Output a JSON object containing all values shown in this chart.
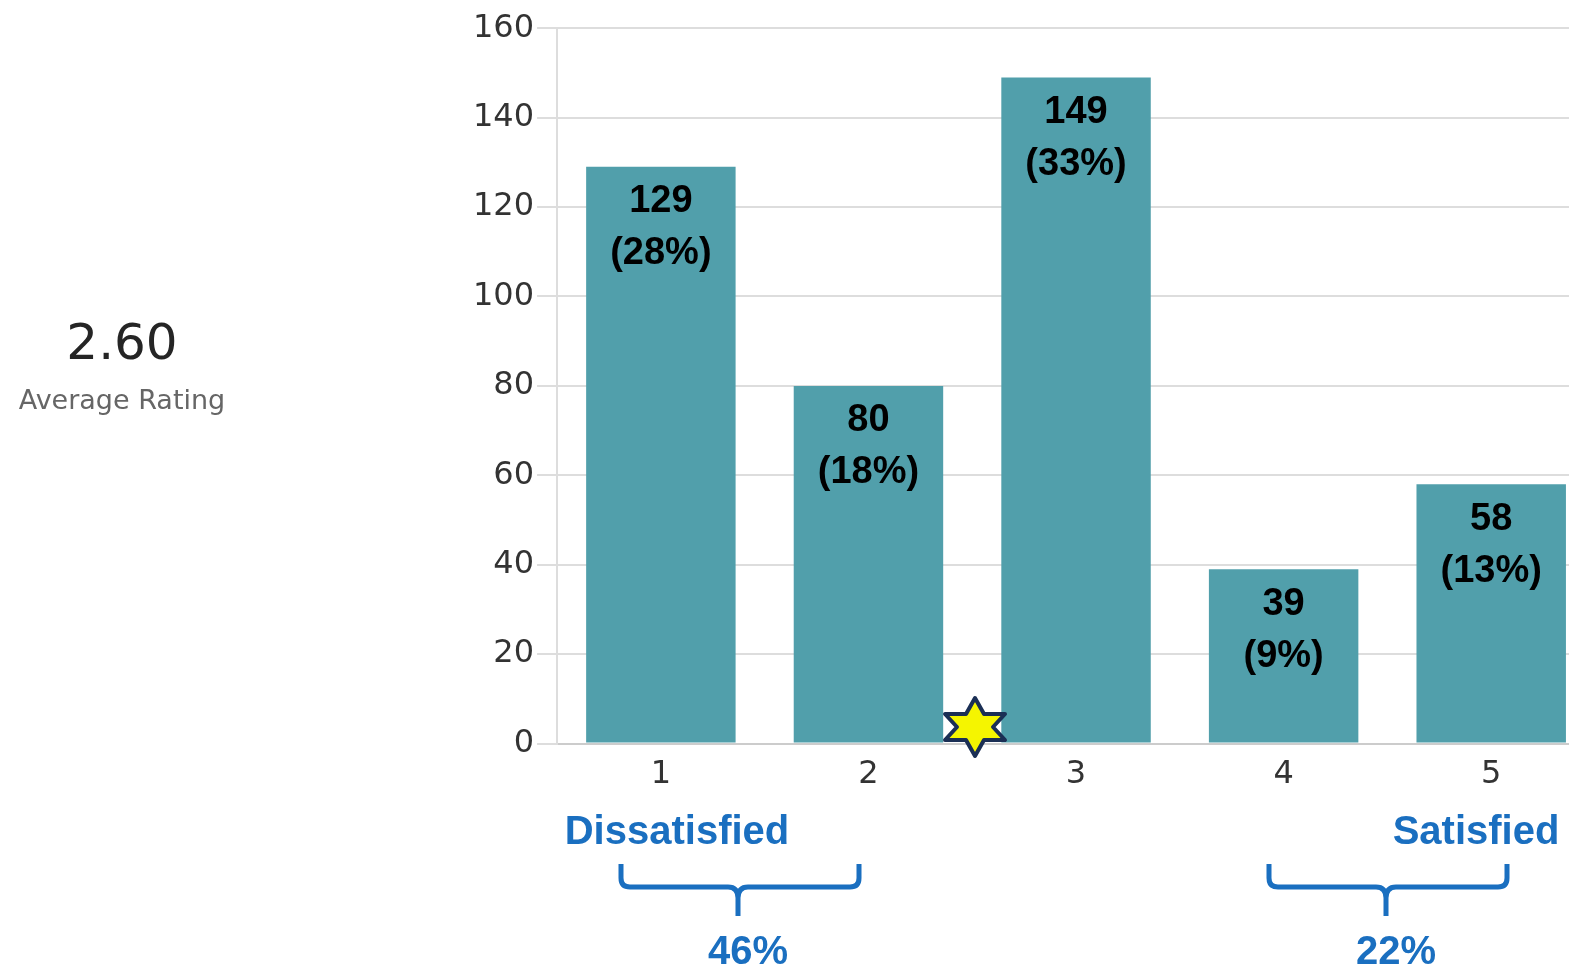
{
  "chart_data": {
    "type": "bar",
    "categories": [
      "1",
      "2",
      "3",
      "4",
      "5"
    ],
    "values": [
      129,
      80,
      149,
      39,
      58
    ],
    "color": "#519fab",
    "value_labels": [
      "129\n(28%)",
      "80\n(18%)",
      "149\n(33%)",
      "39\n(9%)",
      "58\n(13%)"
    ],
    "ylim": [
      0,
      160
    ],
    "yticks": [
      0,
      20,
      40,
      60,
      80,
      100,
      120,
      140,
      160
    ],
    "grid": "y",
    "legend": false,
    "annotations": [
      "2.60",
      "Average Rating",
      "Dissatisfied",
      "Satisfied",
      "46%",
      "22%"
    ]
  }
}
